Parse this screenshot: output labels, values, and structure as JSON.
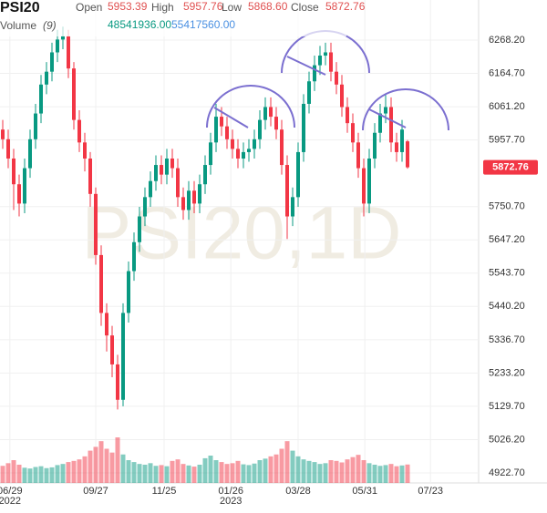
{
  "header": {
    "symbol": "PSI20",
    "open_label": "Open",
    "open": "5953.39",
    "high_label": "High",
    "high": "5957.76",
    "low_label": "Low",
    "low": "5868.60",
    "close_label": "Close",
    "close": "5872.76",
    "volume_label": "Volume",
    "volume_period": "(9)",
    "volume": "48541936.00",
    "volume_ma": "55417560.00"
  },
  "chart_data": {
    "type": "candlestick",
    "watermark": "PSI20,1D",
    "up_color": "#089981",
    "down_color": "#f23645",
    "grid": true,
    "open": [
      5990,
      5960,
      5900,
      5820,
      5760,
      5870,
      5960,
      6040,
      6130,
      6170,
      6230,
      6270,
      6280,
      6180,
      6020,
      5950,
      5900,
      5790,
      5600,
      5420,
      5350,
      5260,
      5150,
      5420,
      5550,
      5640,
      5720,
      5780,
      5830,
      5880,
      5850,
      5900,
      5870,
      5780,
      5740,
      5800,
      5760,
      5820,
      5880,
      5950,
      6030,
      6000,
      5960,
      5930,
      5900,
      5920,
      5930,
      5960,
      6020,
      6060,
      6030,
      5990,
      5880,
      5720,
      5780,
      5920,
      6070,
      6140,
      6190,
      6220,
      6230,
      6170,
      6130,
      6060,
      6010,
      5950,
      5870,
      5760,
      5900,
      5980,
      6040,
      6060,
      5950,
      5920,
      5953.39
    ],
    "high": [
      6020,
      5990,
      5930,
      5850,
      5900,
      5990,
      6070,
      6160,
      6200,
      6260,
      6300,
      6310,
      6300,
      6200,
      6050,
      5980,
      5920,
      5810,
      5630,
      5450,
      5380,
      5290,
      5450,
      5580,
      5670,
      5750,
      5810,
      5860,
      5910,
      5910,
      5930,
      5930,
      5900,
      5810,
      5830,
      5830,
      5850,
      5910,
      5980,
      6070,
      6060,
      6030,
      5990,
      5960,
      5950,
      5960,
      5990,
      6050,
      6090,
      6090,
      6060,
      6020,
      5910,
      5810,
      5950,
      6100,
      6170,
      6220,
      6250,
      6260,
      6260,
      6200,
      6160,
      6090,
      6040,
      5980,
      5900,
      5930,
      6010,
      6070,
      6100,
      6090,
      5980,
      6020,
      5957.76
    ],
    "low": [
      5930,
      5870,
      5740,
      5720,
      5730,
      5840,
      5930,
      6010,
      6100,
      6140,
      6200,
      6240,
      6150,
      5990,
      5920,
      5860,
      5750,
      5570,
      5380,
      5300,
      5220,
      5120,
      5130,
      5390,
      5520,
      5610,
      5690,
      5750,
      5800,
      5820,
      5820,
      5840,
      5750,
      5710,
      5710,
      5730,
      5730,
      5790,
      5850,
      5920,
      5970,
      5930,
      5900,
      5870,
      5870,
      5890,
      5900,
      5930,
      5990,
      6000,
      5960,
      5850,
      5650,
      5690,
      5750,
      5890,
      6040,
      6110,
      6160,
      6190,
      6140,
      6100,
      6030,
      5980,
      5920,
      5840,
      5720,
      5730,
      5870,
      5950,
      6010,
      5920,
      5890,
      5890,
      5868.6
    ],
    "close": [
      5960,
      5900,
      5820,
      5760,
      5870,
      5960,
      6040,
      6130,
      6170,
      6230,
      6270,
      6280,
      6180,
      6020,
      5950,
      5900,
      5790,
      5600,
      5420,
      5350,
      5260,
      5150,
      5420,
      5550,
      5640,
      5720,
      5780,
      5830,
      5880,
      5850,
      5900,
      5870,
      5780,
      5740,
      5800,
      5760,
      5820,
      5880,
      5950,
      6030,
      6000,
      5960,
      5930,
      5900,
      5920,
      5930,
      5960,
      6020,
      6060,
      6030,
      5990,
      5880,
      5720,
      5780,
      5920,
      6070,
      6140,
      6190,
      6220,
      6230,
      6170,
      6130,
      6060,
      6010,
      5950,
      5870,
      5760,
      5900,
      5980,
      6040,
      6060,
      5950,
      5920,
      5990,
      5872.76
    ],
    "volume": [
      45000000,
      52000000,
      60000000,
      48000000,
      40000000,
      38000000,
      42000000,
      44000000,
      39000000,
      41000000,
      47000000,
      50000000,
      55000000,
      58000000,
      62000000,
      70000000,
      85000000,
      95000000,
      110000000,
      90000000,
      80000000,
      120000000,
      75000000,
      60000000,
      55000000,
      50000000,
      48000000,
      52000000,
      45000000,
      47000000,
      44000000,
      58000000,
      62000000,
      50000000,
      46000000,
      43000000,
      48000000,
      65000000,
      72000000,
      60000000,
      55000000,
      50000000,
      52000000,
      58000000,
      49000000,
      47000000,
      51000000,
      60000000,
      64000000,
      70000000,
      75000000,
      90000000,
      110000000,
      85000000,
      70000000,
      62000000,
      58000000,
      55000000,
      50000000,
      52000000,
      60000000,
      58000000,
      54000000,
      62000000,
      68000000,
      74000000,
      60000000,
      52000000,
      48000000,
      45000000,
      47000000,
      50000000,
      44000000,
      46000000,
      48541936
    ],
    "volume_lim": [
      0,
      180000000
    ],
    "xlim": [
      0,
      87.5
    ],
    "ylim": [
      4891.56,
      6392.83
    ],
    "yticks": [
      {
        "value": 4922.7,
        "label": "4922.70"
      },
      {
        "value": 5026.2,
        "label": "5026.20"
      },
      {
        "value": 5129.7,
        "label": "5129.70"
      },
      {
        "value": 5233.2,
        "label": "5233.20"
      },
      {
        "value": 5336.7,
        "label": "5336.70"
      },
      {
        "value": 5440.2,
        "label": "5440.20"
      },
      {
        "value": 5543.7,
        "label": "5543.70"
      },
      {
        "value": 5647.2,
        "label": "5647.20"
      },
      {
        "value": 5750.7,
        "label": "5750.70"
      },
      {
        "value": 5957.7,
        "label": "5957.70"
      },
      {
        "value": 6061.2,
        "label": "6061.20"
      },
      {
        "value": 6164.7,
        "label": "6164.70"
      },
      {
        "value": 6268.2,
        "label": "6268.20"
      }
    ],
    "xticks": [
      {
        "value": 1.8,
        "label": "06/29"
      },
      {
        "value": 17.5,
        "label": "09/27"
      },
      {
        "value": 30,
        "label": "11/25"
      },
      {
        "value": 42.2,
        "label": "01/26"
      },
      {
        "value": 54.5,
        "label": "03/28"
      },
      {
        "value": 66.7,
        "label": "05/31"
      },
      {
        "value": 78.7,
        "label": "07/23"
      }
    ],
    "year_labels": [
      {
        "value": 1.8,
        "label": "2022"
      },
      {
        "value": 42.2,
        "label": "2023"
      }
    ]
  }
}
